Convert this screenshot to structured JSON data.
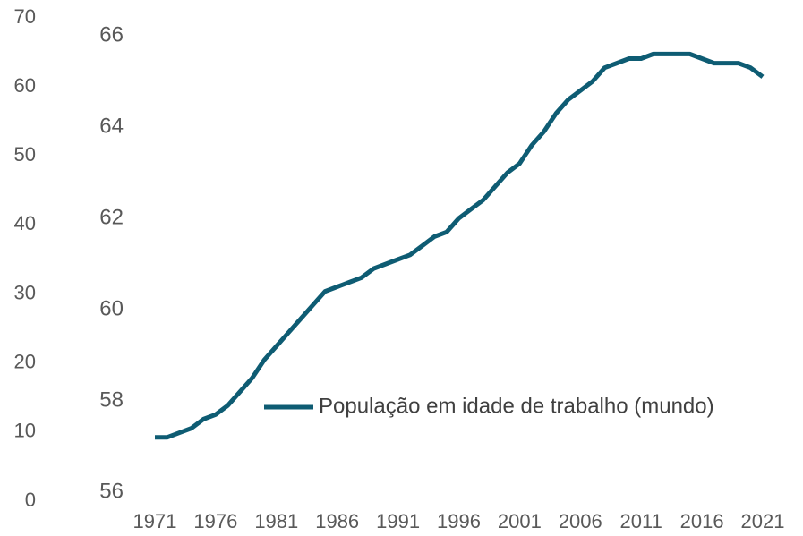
{
  "chart_data": {
    "type": "line",
    "categories": [
      "1971",
      null,
      null,
      null,
      null,
      "1976",
      null,
      null,
      null,
      null,
      "1981",
      null,
      null,
      null,
      null,
      "1986",
      null,
      null,
      null,
      null,
      "1991",
      null,
      null,
      null,
      null,
      "1996",
      null,
      null,
      null,
      null,
      "2001",
      null,
      null,
      null,
      null,
      "2006",
      null,
      null,
      null,
      null,
      "2011",
      null,
      null,
      null,
      null,
      "2016",
      null,
      null,
      null,
      null,
      "2021"
    ],
    "series": [
      {
        "name": "População em idade de trabalho (mundo)",
        "color": "#0e5c73",
        "values": [
          57.2,
          57.2,
          57.3,
          57.4,
          57.6,
          57.7,
          57.9,
          58.2,
          58.5,
          58.9,
          59.2,
          59.5,
          59.8,
          60.1,
          60.4,
          60.5,
          60.6,
          60.7,
          60.9,
          61.0,
          61.1,
          61.2,
          61.4,
          61.6,
          61.7,
          62.0,
          62.2,
          62.4,
          62.7,
          63.0,
          63.2,
          63.6,
          63.9,
          64.3,
          64.6,
          64.8,
          65.0,
          65.3,
          65.4,
          65.5,
          65.5,
          65.6,
          65.6,
          65.6,
          65.6,
          65.5,
          65.4,
          65.4,
          65.4,
          65.3,
          65.1
        ]
      }
    ],
    "ylim": [
      56,
      66
    ],
    "yticks": [
      56,
      58,
      60,
      62,
      64,
      66
    ],
    "y2lim": [
      0,
      70
    ],
    "y2ticks": [
      0,
      10,
      20,
      30,
      40,
      50,
      60,
      70
    ],
    "legend": "bottom-right"
  }
}
